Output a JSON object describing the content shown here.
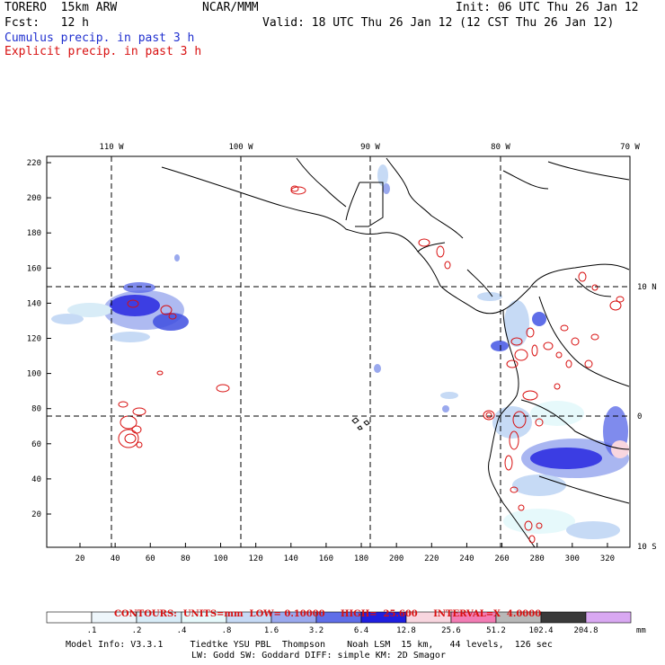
{
  "header": {
    "model": "TORERO  15km ARW",
    "org": "NCAR/MMM",
    "init": "Init: 06 UTC Thu 26 Jan 12",
    "fcst": "Fcst:   12 h",
    "valid": "Valid: 18 UTC Thu 26 Jan 12 (12 CST Thu 26 Jan 12)",
    "cumulus": "Cumulus precip. in past 3 h",
    "explicit": "Explicit precip. in past 3 h"
  },
  "map": {
    "lon_labels": [
      "110 W",
      "100 W",
      "90 W",
      "80 W",
      "70 W"
    ],
    "lat_labels": [
      "10 N",
      "0",
      "10 S"
    ],
    "y_ticks": [
      "220",
      "200",
      "180",
      "160",
      "140",
      "120",
      "100",
      "80",
      "60",
      "40",
      "20"
    ],
    "x_ticks": [
      "20",
      "40",
      "60",
      "80",
      "100",
      "120",
      "140",
      "160",
      "180",
      "200",
      "220",
      "240",
      "260",
      "280",
      "300",
      "320"
    ],
    "contour_color": "#d81010",
    "line_color": "#000000"
  },
  "contours_note": {
    "units": "CONTOURS:  UNITS=mm  LOW= 0.10000",
    "high": "HIGH=  25.600",
    "interval": "INTERVAL=X  4.0000"
  },
  "legend": {
    "labels": [
      ".1",
      ".2",
      ".4",
      ".8",
      "1.6",
      "3.2",
      "6.4",
      "12.8",
      "25.6",
      "51.2",
      "102.4",
      "204.8"
    ],
    "unit": "mm",
    "colors": [
      "#ffffff",
      "#eef6fb",
      "#d8ecf7",
      "#e6f9fb",
      "#c6daf5",
      "#9aa9ee",
      "#5f6ee8",
      "#1f1fe0",
      "#f8d6df",
      "#f27cb4",
      "#b8b8b8",
      "#3a3a3a",
      "#d9a8f2"
    ]
  },
  "footer": {
    "line1": "Model Info: V3.3.1     Tiedtke YSU PBL  Thompson    Noah LSM  15 km,   44 levels,  126 sec",
    "line2": "LW: Godd SW: Goddard DIFF: simple KM: 2D Smagor"
  }
}
